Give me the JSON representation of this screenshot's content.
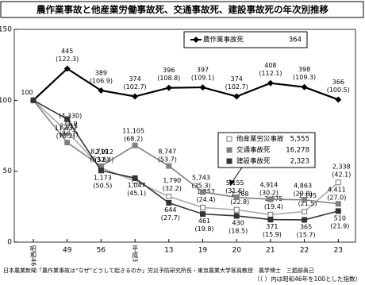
{
  "chart_data": {
    "type": "line",
    "title": "農作業事故と他産業労働事故死、交通事故死、建設事故死の年次別推移",
    "categories": [
      "昭和46",
      "49",
      "56",
      "平成3",
      "13",
      "19",
      "20",
      "21",
      "22",
      "23"
    ],
    "ylim": [
      0,
      150
    ],
    "yticks": [
      0,
      50,
      100,
      150
    ],
    "series": [
      {
        "name": "農作業事故死",
        "color": "#000000",
        "marker": "diamond",
        "values": [
          100,
          122.3,
          106.9,
          102.7,
          108.8,
          109.1,
          102.7,
          112.1,
          109.3,
          100.5
        ],
        "value_labels": [
          "100",
          "(122.3)",
          "(106.9)",
          "(102.7)",
          "(108.8)",
          "(109.1)",
          "(102.7)",
          "(112.1)",
          "(109.3)",
          "(100.5)"
        ],
        "count_labels": [
          "364",
          "445",
          "389",
          "374",
          "396",
          "397",
          "374",
          "408",
          "398",
          "366"
        ]
      },
      {
        "name": "他産業労災事故",
        "color": "#aaaaaa",
        "marker": "open-square",
        "values": [
          100,
          77.9,
          52.4,
          43,
          32.2,
          24.4,
          22.8,
          19.4,
          21.5,
          42.1
        ],
        "value_labels": [
          null,
          "77.9",
          "(52.4)",
          null,
          "(32.2)",
          "(24.4)",
          "(22.8)",
          "(19.4)",
          "(21.5)",
          "(42.1)"
        ],
        "count_labels": [
          "5,555",
          "(4,330)",
          "2,912",
          null,
          "1,790",
          "1,357",
          "1,268",
          "1,075",
          "1,195",
          "2,338"
        ]
      },
      {
        "name": "交通事故死",
        "color": "#808080",
        "marker": "square",
        "values": [
          100,
          70.2,
          53.6,
          68.2,
          53.7,
          35.3,
          31.6,
          30.2,
          29.8,
          27.0
        ],
        "value_labels": [
          null,
          "(70.2)",
          "(53.6)",
          "(68.2)",
          "(53.7)",
          "(35.3)",
          "(31.6)",
          "(30.2)",
          "(29.8)",
          "(27.0)"
        ],
        "count_labels": [
          "16,278",
          "11,432",
          "8,719",
          "11,105",
          "8,747",
          "5,743",
          "5,155",
          "4,914",
          "4,863",
          "4,411"
        ]
      },
      {
        "name": "建設事故死",
        "color": "#333333",
        "marker": "square",
        "values": [
          100,
          86.7,
          50.5,
          45.1,
          27.7,
          19.8,
          18.5,
          15.9,
          15.7,
          21.9
        ],
        "value_labels": [
          null,
          "(86.7)",
          "(50.5)",
          "(45.1)",
          "(27.7)",
          "(19.8)",
          "(18.5)",
          "(15.9)",
          "(15.7)",
          "(21.9)"
        ],
        "count_labels": [
          "2,323",
          "2,015",
          "1,173",
          "1,047",
          "644",
          "461",
          "430",
          "371",
          "365",
          "510"
        ]
      }
    ],
    "source": "日本農業新聞「農作業事故は“なぜ”どうして起きるのか」労災予防研究所長・東京農業大学客員教授　農学博士　三廼部眞己",
    "note": "（（ ）内は昭和46年を100とした指数）"
  }
}
